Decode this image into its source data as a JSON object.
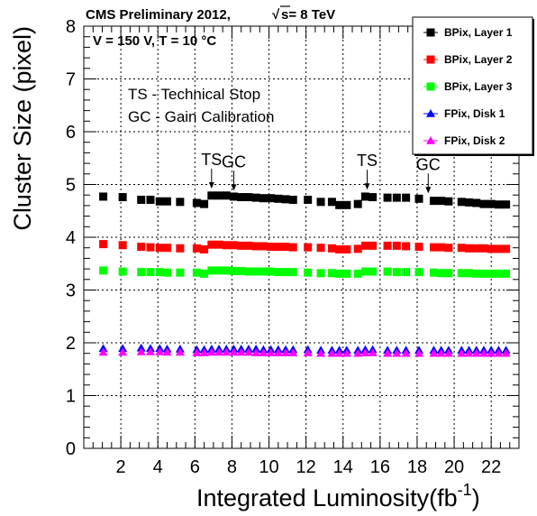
{
  "chart_data": {
    "type": "scatter",
    "header": {
      "experiment": "CMS Preliminary 2012,",
      "sqrt_symbol": "√",
      "energy": "s= 8 TeV"
    },
    "conditions": "V = 150 V, T = 10 °C",
    "notes": [
      "TS - Technical Stop",
      "GC - Gain Calibration"
    ],
    "xlabel": "Integrated Luminosity(fb",
    "xlabel_superscript": "-1",
    "xlabel_suffix": ")",
    "ylabel": "Cluster Size (pixel)",
    "xlim": [
      0,
      23.5
    ],
    "ylim": [
      0,
      8
    ],
    "xticks": [
      "2",
      "4",
      "6",
      "8",
      "10",
      "12",
      "14",
      "16",
      "18",
      "20",
      "22"
    ],
    "yticks": [
      "0",
      "1",
      "2",
      "3",
      "4",
      "5",
      "6",
      "7",
      "8"
    ],
    "grid": true,
    "legend_position": "top-right",
    "annotations": [
      {
        "label": "TS",
        "x": 6.9,
        "y": 4.82
      },
      {
        "label": "GC",
        "x": 8.1,
        "y": 4.78
      },
      {
        "label": "TS",
        "x": 15.3,
        "y": 4.8
      },
      {
        "label": "GC",
        "x": 18.6,
        "y": 4.73
      }
    ],
    "x": [
      1.05,
      2.1,
      3.1,
      3.6,
      4.1,
      4.5,
      5.2,
      6.1,
      6.5,
      6.9,
      7.3,
      7.7,
      8.1,
      8.5,
      8.9,
      9.3,
      9.7,
      10.1,
      10.5,
      10.9,
      11.3,
      12.1,
      12.8,
      13.4,
      13.8,
      14.2,
      14.8,
      15.2,
      15.6,
      16.4,
      16.9,
      17.4,
      18.1,
      18.9,
      19.3,
      19.7,
      20.4,
      20.8,
      21.2,
      21.6,
      22.0,
      22.4,
      22.8
    ],
    "series": [
      {
        "name": "BPix, Layer 1",
        "marker": "square",
        "color": "#000000",
        "values": [
          4.77,
          4.76,
          4.71,
          4.71,
          4.68,
          4.68,
          4.67,
          4.65,
          4.63,
          4.79,
          4.79,
          4.79,
          4.77,
          4.76,
          4.76,
          4.75,
          4.74,
          4.74,
          4.73,
          4.72,
          4.71,
          4.71,
          4.67,
          4.67,
          4.61,
          4.61,
          4.63,
          4.77,
          4.76,
          4.75,
          4.75,
          4.75,
          4.73,
          4.69,
          4.69,
          4.68,
          4.67,
          4.66,
          4.65,
          4.63,
          4.63,
          4.62,
          4.62
        ]
      },
      {
        "name": "BPix, Layer 2",
        "marker": "square",
        "color": "#ff0000",
        "values": [
          3.87,
          3.85,
          3.82,
          3.81,
          3.8,
          3.8,
          3.79,
          3.79,
          3.77,
          3.86,
          3.86,
          3.85,
          3.85,
          3.84,
          3.84,
          3.83,
          3.83,
          3.82,
          3.82,
          3.82,
          3.81,
          3.81,
          3.8,
          3.79,
          3.77,
          3.77,
          3.78,
          3.84,
          3.84,
          3.84,
          3.84,
          3.83,
          3.82,
          3.81,
          3.81,
          3.8,
          3.8,
          3.79,
          3.79,
          3.79,
          3.78,
          3.78,
          3.78
        ]
      },
      {
        "name": "BPix, Layer 3",
        "marker": "square",
        "color": "#00ff00",
        "values": [
          3.37,
          3.35,
          3.34,
          3.34,
          3.34,
          3.33,
          3.33,
          3.33,
          3.31,
          3.37,
          3.37,
          3.37,
          3.36,
          3.36,
          3.35,
          3.35,
          3.35,
          3.35,
          3.34,
          3.34,
          3.34,
          3.33,
          3.32,
          3.32,
          3.31,
          3.31,
          3.31,
          3.35,
          3.35,
          3.35,
          3.34,
          3.34,
          3.34,
          3.33,
          3.32,
          3.32,
          3.32,
          3.32,
          3.31,
          3.31,
          3.31,
          3.31,
          3.31
        ]
      },
      {
        "name": "FPix, Disk 1",
        "marker": "triangle",
        "color": "#0000ff",
        "values": [
          1.89,
          1.89,
          1.9,
          1.89,
          1.89,
          1.88,
          1.88,
          1.87,
          1.87,
          1.88,
          1.88,
          1.88,
          1.88,
          1.88,
          1.88,
          1.88,
          1.87,
          1.87,
          1.87,
          1.87,
          1.87,
          1.87,
          1.86,
          1.86,
          1.86,
          1.86,
          1.86,
          1.87,
          1.87,
          1.86,
          1.86,
          1.86,
          1.86,
          1.86,
          1.86,
          1.86,
          1.86,
          1.86,
          1.86,
          1.86,
          1.86,
          1.86,
          1.86
        ]
      },
      {
        "name": "FPix, Disk 2",
        "marker": "triangle",
        "color": "#ff00ff",
        "values": [
          1.82,
          1.82,
          1.83,
          1.83,
          1.83,
          1.82,
          1.82,
          1.81,
          1.81,
          1.82,
          1.82,
          1.82,
          1.82,
          1.82,
          1.82,
          1.81,
          1.81,
          1.81,
          1.81,
          1.81,
          1.81,
          1.81,
          1.8,
          1.8,
          1.8,
          1.8,
          1.8,
          1.81,
          1.81,
          1.8,
          1.8,
          1.8,
          1.8,
          1.8,
          1.8,
          1.8,
          1.8,
          1.8,
          1.8,
          1.8,
          1.8,
          1.8,
          1.8
        ]
      }
    ]
  }
}
